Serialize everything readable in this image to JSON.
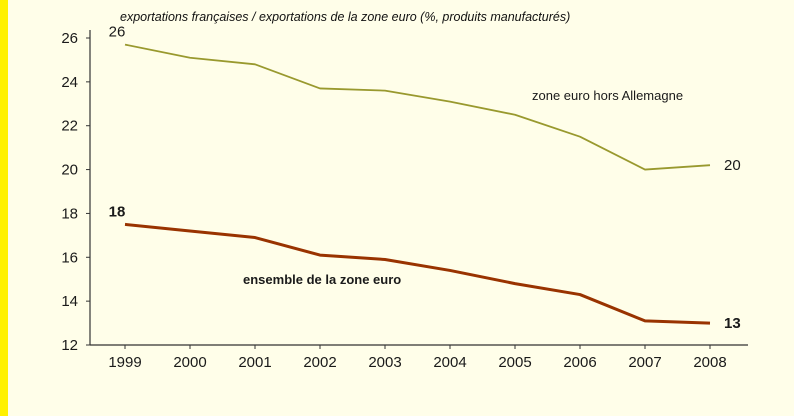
{
  "page": {
    "background_color": "#fffee9",
    "accent_strip_color": "#fff100"
  },
  "chart_data": {
    "type": "line",
    "title": "exportations françaises / exportations de la zone euro (%, produits manufacturés)",
    "xlabel": "",
    "ylabel": "",
    "categories": [
      "1999",
      "2000",
      "2001",
      "2002",
      "2003",
      "2004",
      "2005",
      "2006",
      "2007",
      "2008"
    ],
    "series": [
      {
        "name": "zone euro hors Allemagne",
        "color": "#99992e",
        "values": [
          25.7,
          25.1,
          24.8,
          23.7,
          23.6,
          23.1,
          22.5,
          21.5,
          20.0,
          20.2
        ],
        "start_label": "26",
        "end_label": "20",
        "bold": false
      },
      {
        "name": "ensemble de la zone euro",
        "color": "#993300",
        "values": [
          17.5,
          17.2,
          16.9,
          16.1,
          15.9,
          15.4,
          14.8,
          14.3,
          13.1,
          13.0
        ],
        "start_label": "18",
        "end_label": "13",
        "bold": true
      }
    ],
    "ylim": [
      12,
      26
    ],
    "ytick_step": 2,
    "yticks": [
      "12",
      "14",
      "16",
      "18",
      "20",
      "22",
      "24",
      "26"
    ],
    "grid": false,
    "legend_position": "inline-annotations"
  }
}
